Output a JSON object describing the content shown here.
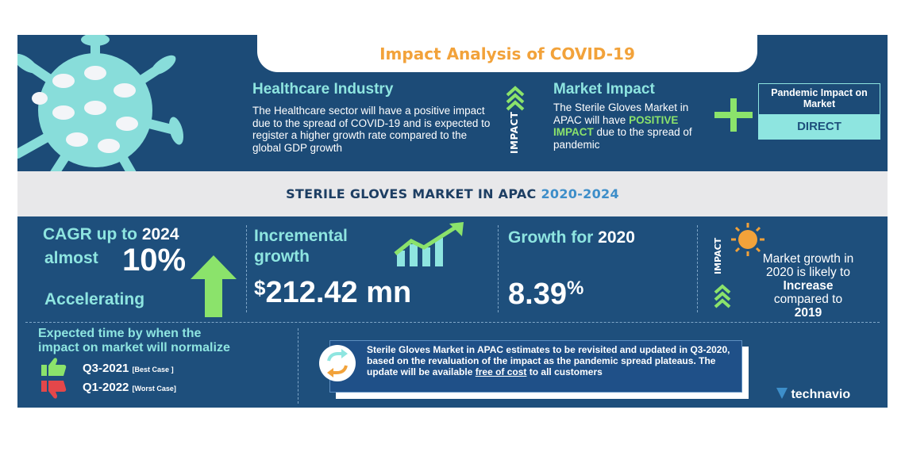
{
  "title": "Impact Analysis of COVID-19",
  "healthcare": {
    "heading": "Healthcare Industry",
    "text": "The Healthcare sector will have a positive impact due to the spread of COVID-19 and is expected to register a higher growth rate compared to the global GDP growth"
  },
  "impact_label": "IMPACT",
  "market_impact": {
    "heading": "Market Impact",
    "text_before": "The Sterile Gloves Market in APAC will have",
    "highlight": "POSITIVE IMPACT",
    "text_after": "due to the spread of pandemic"
  },
  "pandemic": {
    "label": "Pandemic Impact on Market",
    "value": "DIRECT"
  },
  "banner": {
    "text": "STERILE GLOVES MARKET IN APAC",
    "years": "2020-2024"
  },
  "cagr": {
    "heading": "CAGR up to",
    "year": "2024",
    "prefix": "almost",
    "value": "10%",
    "trend": "Accelerating"
  },
  "incremental": {
    "heading_line1": "Incremental",
    "heading_line2": "growth",
    "currency": "$",
    "value": "212.42 mn"
  },
  "growth2020": {
    "heading": "Growth for",
    "year": "2020",
    "value": "8.39",
    "unit": "%"
  },
  "impact_right": {
    "label": "IMPACT",
    "line1": "Market growth in",
    "line2": "2020 is likely to",
    "line3": "Increase",
    "line4": "compared to",
    "line5": "2019"
  },
  "expected": {
    "heading_line1": "Expected time by when the",
    "heading_line2": "impact on market will normalize",
    "best": "Q3-2021",
    "best_note": "[Best Case ]",
    "worst": "Q1-2022",
    "worst_note": "[Worst Case]"
  },
  "update": {
    "text_before": "Sterile Gloves Market in APAC estimates to be revisited and updated in Q3-2020, based on the revaluation of the impact as the pandemic spread plateaus. The update will be available",
    "link": "free of cost",
    "text_after": "to all customers"
  },
  "logo": "technavio",
  "colors": {
    "background": "#1e4f7c",
    "accent_teal": "#8ee5e0",
    "accent_orange": "#f2a23a",
    "accent_green": "#8be36b",
    "banner_bg": "#e8e8ea"
  }
}
